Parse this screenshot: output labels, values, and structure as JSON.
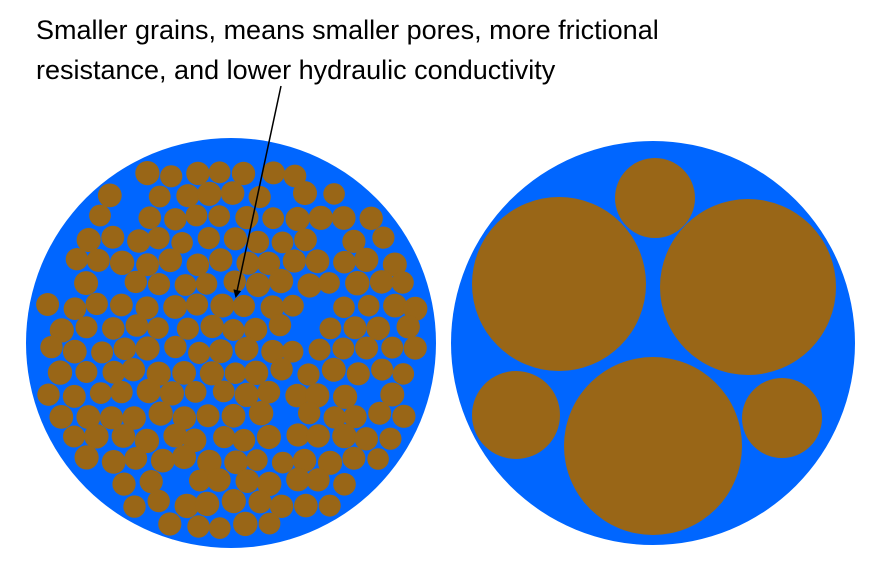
{
  "caption": {
    "line1": "Smaller grains, means smaller pores, more frictional",
    "line2": "resistance, and lower hydraulic conductivity"
  },
  "colors": {
    "pore": "#0066ff",
    "grain": "#996617",
    "arrow": "#000000"
  }
}
